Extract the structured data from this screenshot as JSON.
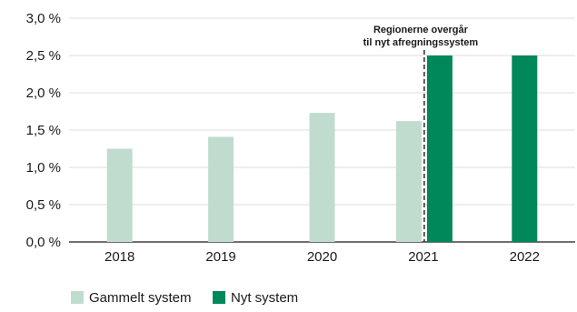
{
  "chart_data": {
    "type": "bar",
    "categories": [
      "2018",
      "2019",
      "2020",
      "2021",
      "2022"
    ],
    "series": [
      {
        "name": "Gammelt system",
        "values": [
          1.25,
          1.41,
          1.73,
          1.62,
          null
        ],
        "color": "#bfdccf"
      },
      {
        "name": "Nyt system",
        "values": [
          null,
          null,
          null,
          2.5,
          2.5
        ],
        "color": "#00875a"
      }
    ],
    "y_ticks": [
      "0,0 %",
      "0,5 %",
      "1,0 %",
      "1,5 %",
      "2,0 %",
      "2,5 %",
      "3,0 %"
    ],
    "ylim": [
      0,
      3.0
    ],
    "annotation": {
      "lines": [
        "Regionerne overgår",
        "til nyt afregningssystem"
      ],
      "marker": "dashed vertical line within 2021"
    },
    "legend_position": "bottom-left",
    "grid": "horizontal",
    "grid_color": "#dcdcdc",
    "title": "",
    "xlabel": "",
    "ylabel": ""
  }
}
